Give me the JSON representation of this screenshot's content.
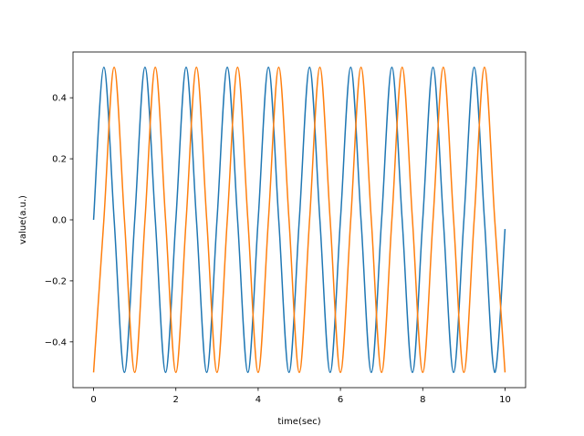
{
  "chart_data": {
    "type": "line",
    "title": "",
    "xlabel": "time(sec)",
    "ylabel": "value(a.u.)",
    "xlim": [
      -0.5,
      10.5
    ],
    "ylim": [
      -0.55,
      0.55
    ],
    "xticks": [
      0,
      2,
      4,
      6,
      8,
      10
    ],
    "xtick_labels": [
      "0",
      "2",
      "4",
      "6",
      "8",
      "10"
    ],
    "yticks": [
      -0.4,
      -0.2,
      0.0,
      0.2,
      0.4
    ],
    "ytick_labels": [
      "−0.4",
      "−0.2",
      "0.0",
      "0.2",
      "0.4"
    ],
    "grid": false,
    "series": [
      {
        "color": "#1f77b4",
        "x": [
          0,
          0.25,
          0.5,
          0.75,
          1.0,
          1.25,
          1.5,
          1.75,
          2.0,
          2.25,
          2.5,
          2.75,
          3.0,
          3.25,
          3.5,
          3.75,
          4.0,
          4.25,
          4.5,
          4.75,
          5.0,
          5.25,
          5.5,
          5.75,
          6.0,
          6.25,
          6.5,
          6.75,
          7.0,
          7.25,
          7.5,
          7.75,
          8.0,
          8.25,
          8.5,
          8.75,
          9.0,
          9.25,
          9.5,
          9.75,
          10.0
        ],
        "y": [
          0.0,
          0.5,
          0.0,
          -0.5,
          0.0,
          0.5,
          0.0,
          -0.5,
          0.0,
          0.5,
          0.0,
          -0.5,
          0.0,
          0.5,
          0.0,
          -0.5,
          0.0,
          0.5,
          0.0,
          -0.5,
          0.0,
          0.5,
          0.0,
          -0.5,
          0.0,
          0.5,
          0.0,
          -0.5,
          0.0,
          0.5,
          0.0,
          -0.5,
          0.0,
          0.5,
          0.0,
          -0.5,
          0.0,
          0.5,
          0.0,
          -0.5,
          -0.03
        ]
      },
      {
        "color": "#ff7f0e",
        "x": [
          0,
          0.25,
          0.5,
          0.75,
          1.0,
          1.25,
          1.5,
          1.75,
          2.0,
          2.25,
          2.5,
          2.75,
          3.0,
          3.25,
          3.5,
          3.75,
          4.0,
          4.25,
          4.5,
          4.75,
          5.0,
          5.25,
          5.5,
          5.75,
          6.0,
          6.25,
          6.5,
          6.75,
          7.0,
          7.25,
          7.5,
          7.75,
          8.0,
          8.25,
          8.5,
          8.75,
          9.0,
          9.25,
          9.5,
          9.75,
          10.0
        ],
        "y": [
          -0.5,
          0.0,
          0.5,
          0.0,
          -0.5,
          0.0,
          0.5,
          0.0,
          -0.5,
          0.0,
          0.5,
          0.0,
          -0.5,
          0.0,
          0.5,
          0.0,
          -0.5,
          0.0,
          0.5,
          0.0,
          -0.5,
          0.0,
          0.5,
          0.0,
          -0.5,
          0.0,
          0.5,
          0.0,
          -0.5,
          0.0,
          0.5,
          0.0,
          -0.5,
          0.0,
          0.5,
          0.0,
          -0.5,
          0.0,
          0.5,
          0.0,
          -0.5
        ]
      }
    ]
  }
}
